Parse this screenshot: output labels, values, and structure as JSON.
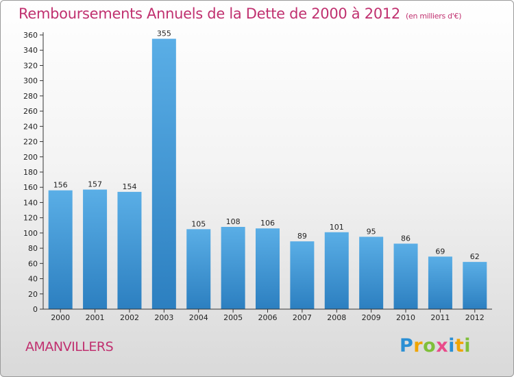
{
  "chart_data": {
    "type": "bar",
    "title": "Remboursements Annuels de la Dette de 2000 à 2012",
    "unit": "(en milliers d'€)",
    "categories": [
      "2000",
      "2001",
      "2002",
      "2003",
      "2004",
      "2005",
      "2006",
      "2007",
      "2008",
      "2009",
      "2010",
      "2011",
      "2012"
    ],
    "values": [
      156,
      157,
      154,
      355,
      105,
      108,
      106,
      89,
      101,
      95,
      86,
      69,
      62
    ],
    "ylim": [
      0,
      360
    ],
    "y_ticks": [
      0,
      20,
      40,
      60,
      80,
      100,
      120,
      140,
      160,
      180,
      200,
      220,
      240,
      260,
      280,
      300,
      320,
      340,
      360
    ],
    "grid": false,
    "bar_color_top": "#5aaee6",
    "bar_color_bottom": "#2c7fc0",
    "title_color": "#c0306f"
  },
  "commune": "AMANVILLERS",
  "logo": {
    "letters": [
      "P",
      "r",
      "o",
      "x",
      "i",
      "t",
      "i"
    ],
    "colors": [
      "#2a8fd4",
      "#f0a400",
      "#7fbf3a",
      "#e94b8a",
      "#2a8fd4",
      "#f0a400",
      "#7fbf3a"
    ]
  }
}
